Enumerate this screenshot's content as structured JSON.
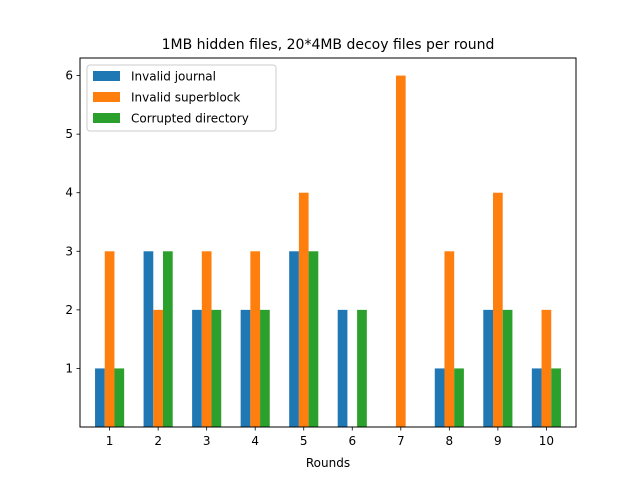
{
  "chart_data": {
    "type": "bar",
    "title": "1MB hidden files, 20*4MB decoy files per round",
    "xlabel": "Rounds",
    "ylabel": "",
    "categories": [
      "1",
      "2",
      "3",
      "4",
      "5",
      "6",
      "7",
      "8",
      "9",
      "10"
    ],
    "ylim": [
      0,
      6.3
    ],
    "yticks": [
      "1",
      "2",
      "3",
      "4",
      "5",
      "6"
    ],
    "legend_position": "upper-left",
    "grid": false,
    "series": [
      {
        "name": "Invalid journal",
        "color": "#1f77b4",
        "values": [
          1,
          3,
          2,
          2,
          3,
          2,
          0,
          1,
          2,
          1
        ]
      },
      {
        "name": "Invalid superblock",
        "color": "#ff7f0e",
        "values": [
          3,
          2,
          3,
          3,
          4,
          0,
          6,
          3,
          4,
          2
        ]
      },
      {
        "name": "Corrupted directory",
        "color": "#2ca02c",
        "values": [
          1,
          3,
          2,
          2,
          3,
          2,
          0,
          1,
          2,
          1
        ]
      }
    ]
  }
}
